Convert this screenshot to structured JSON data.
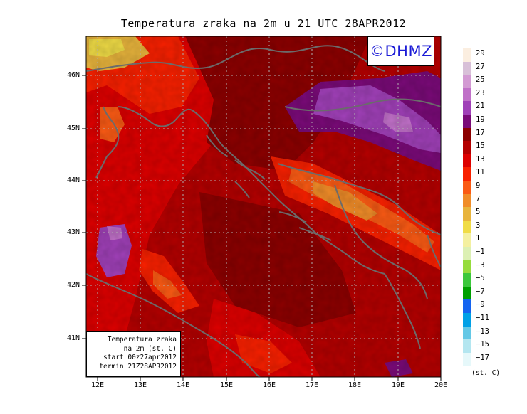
{
  "title": "Temperatura zraka na 2m u 21 UTC 28APR2012",
  "logo_text": "©DHMZ",
  "info_box": {
    "line1": "Temperatura zraka",
    "line2": "na 2m (st. C)",
    "line3": "start 00z27apr2012",
    "line4": "termin 21Z28APR2012"
  },
  "y_ticks": [
    "46N",
    "45N",
    "44N",
    "43N",
    "42N",
    "41N"
  ],
  "x_ticks": [
    "12E",
    "13E",
    "14E",
    "15E",
    "16E",
    "17E",
    "18E",
    "19E",
    "20E"
  ],
  "legend": {
    "units": "(st. C)",
    "labels": [
      "29",
      "27",
      "25",
      "23",
      "21",
      "19",
      "17",
      "15",
      "13",
      "11",
      "9",
      "7",
      "5",
      "3",
      "1",
      "−1",
      "−3",
      "−5",
      "−7",
      "−9",
      "−11",
      "−13",
      "−15",
      "−17"
    ],
    "colors": [
      "#fbeee0",
      "#d8c0d8",
      "#d39ad3",
      "#c070c8",
      "#a040b8",
      "#7a0a78",
      "#8c0000",
      "#b40000",
      "#dd0000",
      "#f82000",
      "#fa5a14",
      "#f08c28",
      "#e8b43c",
      "#f0dc46",
      "#f4f0a0",
      "#dcf0b4",
      "#96dc3c",
      "#3cc83c",
      "#00a000",
      "#1464f0",
      "#00a0e6",
      "#64c8e6",
      "#b4e6f0",
      "#e6f8fa"
    ]
  },
  "colors": {
    "coast": "#6b6b6b",
    "grid": "#b0b0b0",
    "frame": "#000000",
    "logo": "#1b1bd6"
  }
}
